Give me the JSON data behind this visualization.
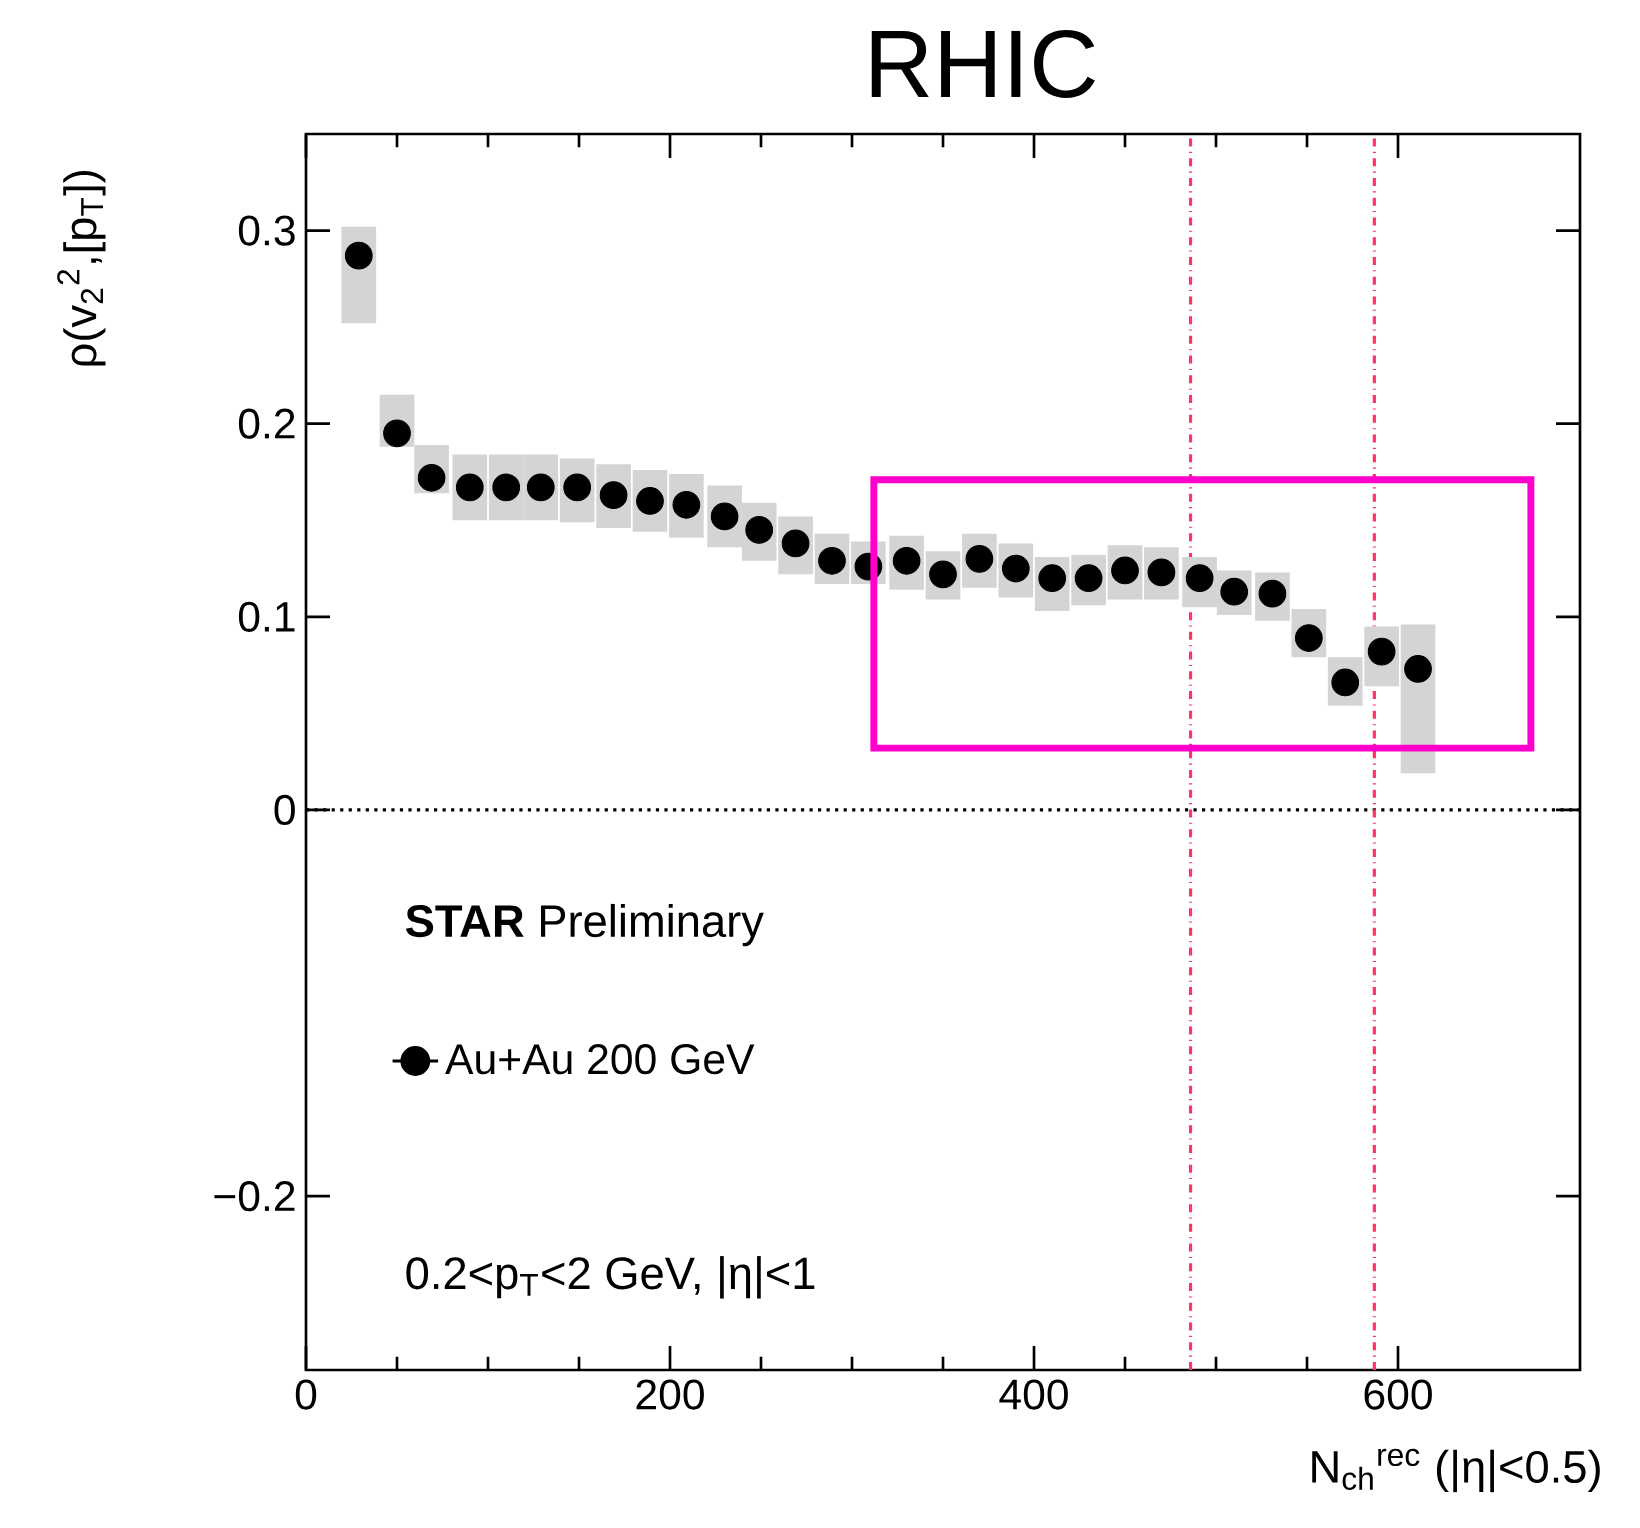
{
  "chart_data": {
    "type": "scatter",
    "title": "RHIC",
    "xlabel": "N$_{ch}$$^{rec}$ (|η|<0.5)",
    "ylabel": "ρ(v$_{2}$$^{2}$,[p$_{T}$])",
    "xlim": [
      0,
      700
    ],
    "ylim": [
      -0.29,
      0.35
    ],
    "xticks": [
      0,
      200,
      400,
      600
    ],
    "yticks": [
      {
        "value": -0.2,
        "label": "−0.2"
      },
      0,
      0.1,
      0.2,
      0.3
    ],
    "legend": "left",
    "marker": "circle",
    "grid": false,
    "series": [
      {
        "name": "Au+Au 200 GeV",
        "color": "#000000",
        "x": [
          29,
          50,
          69,
          90,
          110,
          129,
          149,
          169,
          189,
          209,
          230,
          249,
          269,
          289,
          309,
          330,
          350,
          370,
          390,
          410,
          430,
          450,
          470,
          491,
          510,
          531,
          551,
          571,
          591,
          611
        ],
        "values": [
          0.287,
          0.195,
          0.172,
          0.167,
          0.167,
          0.167,
          0.167,
          0.163,
          0.16,
          0.158,
          0.152,
          0.145,
          0.138,
          0.129,
          0.126,
          0.129,
          0.122,
          0.13,
          0.125,
          0.12,
          0.12,
          0.124,
          0.123,
          0.12,
          0.113,
          0.112,
          0.089,
          0.066,
          0.082,
          0.073
        ],
        "errors": [
          [
            0.252,
            0.302
          ],
          [
            0.188,
            0.215
          ],
          [
            0.164,
            0.189
          ],
          [
            0.15,
            0.184
          ],
          [
            0.15,
            0.184
          ],
          [
            0.15,
            0.184
          ],
          [
            0.149,
            0.182
          ],
          [
            0.146,
            0.179
          ],
          [
            0.144,
            0.176
          ],
          [
            0.141,
            0.174
          ],
          [
            0.136,
            0.168
          ],
          [
            0.129,
            0.159
          ],
          [
            0.122,
            0.152
          ],
          [
            0.117,
            0.143
          ],
          [
            0.117,
            0.139
          ],
          [
            0.114,
            0.142
          ],
          [
            0.109,
            0.134
          ],
          [
            0.115,
            0.143
          ],
          [
            0.11,
            0.138
          ],
          [
            0.103,
            0.131
          ],
          [
            0.106,
            0.132
          ],
          [
            0.109,
            0.137
          ],
          [
            0.109,
            0.136
          ],
          [
            0.105,
            0.131
          ],
          [
            0.101,
            0.124
          ],
          [
            0.098,
            0.123
          ],
          [
            0.079,
            0.104
          ],
          [
            0.054,
            0.079
          ],
          [
            0.064,
            0.095
          ],
          [
            0.019,
            0.096
          ]
        ]
      }
    ],
    "ref_lines": [
      {
        "axis": "y",
        "value": 0,
        "color": "#000000",
        "line_style": "dotted"
      },
      {
        "axis": "x",
        "value": 486,
        "color": "#ff3366",
        "line_style": "dashdot"
      },
      {
        "axis": "x",
        "value": 587,
        "color": "#ff3366",
        "line_style": "dashdot"
      }
    ],
    "annotations": [
      "**STAR** Preliminary",
      "0.2<p$_{T}$<2 GeV, |η|<1"
    ]
  }
}
